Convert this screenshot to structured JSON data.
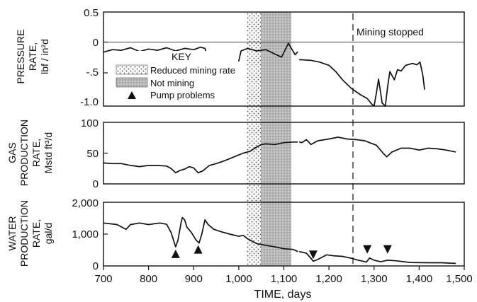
{
  "chart_data": [
    {
      "type": "line",
      "ylabel_lines": [
        "PRESSURE",
        "RATE,",
        "lbf / in²d"
      ],
      "yticks": [
        0.5,
        0,
        -0.5,
        -1.0
      ],
      "ytick_labels": [
        "0.5",
        "0",
        "-.5",
        "-1.0"
      ],
      "ylim": [
        -1.0,
        0.5
      ],
      "xlim": [
        700,
        1500
      ],
      "zero_line": true,
      "annotation": {
        "text": "Mining stopped",
        "x": 1275
      },
      "key": {
        "title": "KEY",
        "items": [
          {
            "swatch": "dots",
            "label": "Reduced mining rate"
          },
          {
            "swatch": "shade",
            "label": "Not mining"
          },
          {
            "swatch": "triangle",
            "label": "Pump problems"
          }
        ]
      },
      "series": [
        {
          "segment": 1,
          "points": [
            [
              700,
              -0.14
            ],
            [
              720,
              -0.1
            ],
            [
              740,
              -0.11
            ],
            [
              760,
              -0.07
            ],
            [
              780,
              -0.13
            ],
            [
              800,
              -0.09
            ],
            [
              820,
              -0.11
            ],
            [
              840,
              -0.07
            ],
            [
              860,
              -0.12
            ],
            [
              880,
              -0.08
            ],
            [
              900,
              -0.1
            ],
            [
              915,
              -0.06
            ],
            [
              925,
              -0.08
            ],
            [
              930,
              -0.2
            ],
            [
              935,
              -0.32
            ]
          ]
        },
        {
          "segment": 2,
          "points": [
            [
              1000,
              -0.28
            ],
            [
              1005,
              -0.12
            ],
            [
              1020,
              -0.08
            ],
            [
              1040,
              -0.12
            ],
            [
              1060,
              -0.1
            ],
            [
              1080,
              -0.17
            ],
            [
              1095,
              -0.22
            ],
            [
              1110,
              0.0
            ],
            [
              1125,
              -0.18
            ],
            [
              1130,
              -0.14
            ]
          ]
        },
        {
          "segment": 3,
          "points": [
            [
              1135,
              -0.26
            ],
            [
              1160,
              -0.27
            ],
            [
              1180,
              -0.3
            ],
            [
              1200,
              -0.35
            ],
            [
              1215,
              -0.45
            ],
            [
              1230,
              -0.58
            ],
            [
              1250,
              -0.72
            ],
            [
              1270,
              -0.82
            ],
            [
              1285,
              -0.88
            ],
            [
              1295,
              -0.97
            ],
            [
              1300,
              -1.0
            ],
            [
              1305,
              -0.8
            ],
            [
              1310,
              -0.57
            ],
            [
              1318,
              -0.95
            ],
            [
              1325,
              -1.0
            ],
            [
              1330,
              -0.7
            ],
            [
              1335,
              -0.45
            ],
            [
              1345,
              -0.58
            ],
            [
              1352,
              -0.42
            ],
            [
              1360,
              -0.44
            ],
            [
              1370,
              -0.35
            ],
            [
              1385,
              -0.32
            ],
            [
              1395,
              -0.34
            ],
            [
              1402,
              -0.3
            ],
            [
              1408,
              -0.5
            ],
            [
              1412,
              -0.73
            ]
          ]
        }
      ]
    },
    {
      "type": "line",
      "ylabel_lines": [
        "GAS",
        "PRODUCTION",
        "RATE,",
        "Mstd ft³/d"
      ],
      "yticks": [
        100,
        50,
        0
      ],
      "ytick_labels": [
        "100",
        "50",
        "0"
      ],
      "ylim": [
        0,
        100
      ],
      "xlim": [
        700,
        1500
      ],
      "series": [
        {
          "segment": 1,
          "points": [
            [
              700,
              34
            ],
            [
              720,
              33
            ],
            [
              740,
              33
            ],
            [
              760,
              30
            ],
            [
              780,
              28
            ],
            [
              800,
              30
            ],
            [
              820,
              30
            ],
            [
              840,
              29
            ],
            [
              850,
              25
            ],
            [
              860,
              18
            ],
            [
              870,
              22
            ],
            [
              880,
              24
            ],
            [
              890,
              28
            ],
            [
              900,
              26
            ],
            [
              905,
              22
            ],
            [
              910,
              18
            ],
            [
              920,
              21
            ],
            [
              935,
              30
            ],
            [
              950,
              33
            ],
            [
              970,
              38
            ],
            [
              990,
              44
            ],
            [
              1010,
              50
            ],
            [
              1025,
              53
            ],
            [
              1040,
              60
            ],
            [
              1050,
              64
            ],
            [
              1060,
              65
            ],
            [
              1080,
              64
            ],
            [
              1100,
              67
            ],
            [
              1120,
              68
            ],
            [
              1130,
              68
            ]
          ]
        },
        {
          "segment": 2,
          "points": [
            [
              1135,
              68
            ],
            [
              1140,
              67
            ],
            [
              1150,
              72
            ],
            [
              1160,
              64
            ],
            [
              1175,
              70
            ],
            [
              1200,
              73
            ],
            [
              1220,
              76
            ],
            [
              1240,
              73
            ],
            [
              1260,
              72
            ],
            [
              1280,
              70
            ],
            [
              1290,
              67
            ],
            [
              1305,
              63
            ],
            [
              1320,
              50
            ],
            [
              1328,
              44
            ],
            [
              1340,
              52
            ],
            [
              1360,
              58
            ],
            [
              1380,
              58
            ],
            [
              1400,
              55
            ],
            [
              1420,
              58
            ],
            [
              1440,
              57
            ],
            [
              1460,
              55
            ],
            [
              1480,
              52
            ]
          ]
        }
      ]
    },
    {
      "type": "line",
      "ylabel_lines": [
        "WATER",
        "PRODUCTION",
        "RATE,",
        "gal/d"
      ],
      "yticks": [
        2000,
        1000,
        0
      ],
      "ytick_labels": [
        "2,000",
        "1,000",
        "0"
      ],
      "ylim": [
        0,
        2000
      ],
      "xlim": [
        700,
        1500
      ],
      "xticks": [
        700,
        800,
        900,
        1000,
        1100,
        1200,
        1300,
        1400,
        1500
      ],
      "xtick_labels": [
        "700",
        "800",
        "900",
        "1,000",
        "1,100",
        "1,200",
        "1,300",
        "1,400",
        "1,500"
      ],
      "xlabel": "TIME, days",
      "markers": [
        {
          "x": 860,
          "y": 380,
          "dir": "up"
        },
        {
          "x": 910,
          "y": 520,
          "dir": "up"
        },
        {
          "x": 1165,
          "y": 350,
          "dir": "down"
        },
        {
          "x": 1285,
          "y": 520,
          "dir": "down"
        },
        {
          "x": 1330,
          "y": 520,
          "dir": "down"
        }
      ],
      "series": [
        {
          "segment": 1,
          "points": [
            [
              700,
              1350
            ],
            [
              730,
              1300
            ],
            [
              750,
              1150
            ],
            [
              760,
              1300
            ],
            [
              780,
              1350
            ],
            [
              800,
              1300
            ],
            [
              825,
              1350
            ],
            [
              840,
              1310
            ],
            [
              850,
              1050
            ],
            [
              860,
              600
            ],
            [
              865,
              800
            ],
            [
              872,
              1350
            ],
            [
              875,
              1520
            ],
            [
              880,
              1450
            ],
            [
              885,
              1220
            ],
            [
              895,
              1050
            ],
            [
              905,
              820
            ],
            [
              912,
              720
            ],
            [
              918,
              1000
            ],
            [
              925,
              1450
            ],
            [
              932,
              1300
            ],
            [
              945,
              1150
            ],
            [
              960,
              1080
            ],
            [
              980,
              1000
            ],
            [
              1000,
              930
            ],
            [
              1010,
              960
            ],
            [
              1020,
              850
            ],
            [
              1040,
              700
            ],
            [
              1060,
              650
            ],
            [
              1080,
              600
            ],
            [
              1100,
              540
            ],
            [
              1120,
              520
            ],
            [
              1130,
              460
            ]
          ]
        },
        {
          "segment": 2,
          "points": [
            [
              1135,
              450
            ],
            [
              1150,
              400
            ],
            [
              1160,
              240
            ],
            [
              1165,
              150
            ],
            [
              1175,
              200
            ],
            [
              1195,
              350
            ],
            [
              1210,
              320
            ],
            [
              1230,
              300
            ],
            [
              1250,
              240
            ],
            [
              1265,
              180
            ],
            [
              1275,
              150
            ],
            [
              1283,
              120
            ],
            [
              1290,
              250
            ],
            [
              1300,
              180
            ],
            [
              1315,
              130
            ],
            [
              1330,
              180
            ],
            [
              1350,
              160
            ],
            [
              1380,
              110
            ],
            [
              1420,
              100
            ],
            [
              1450,
              100
            ],
            [
              1480,
              80
            ]
          ]
        }
      ]
    }
  ]
}
